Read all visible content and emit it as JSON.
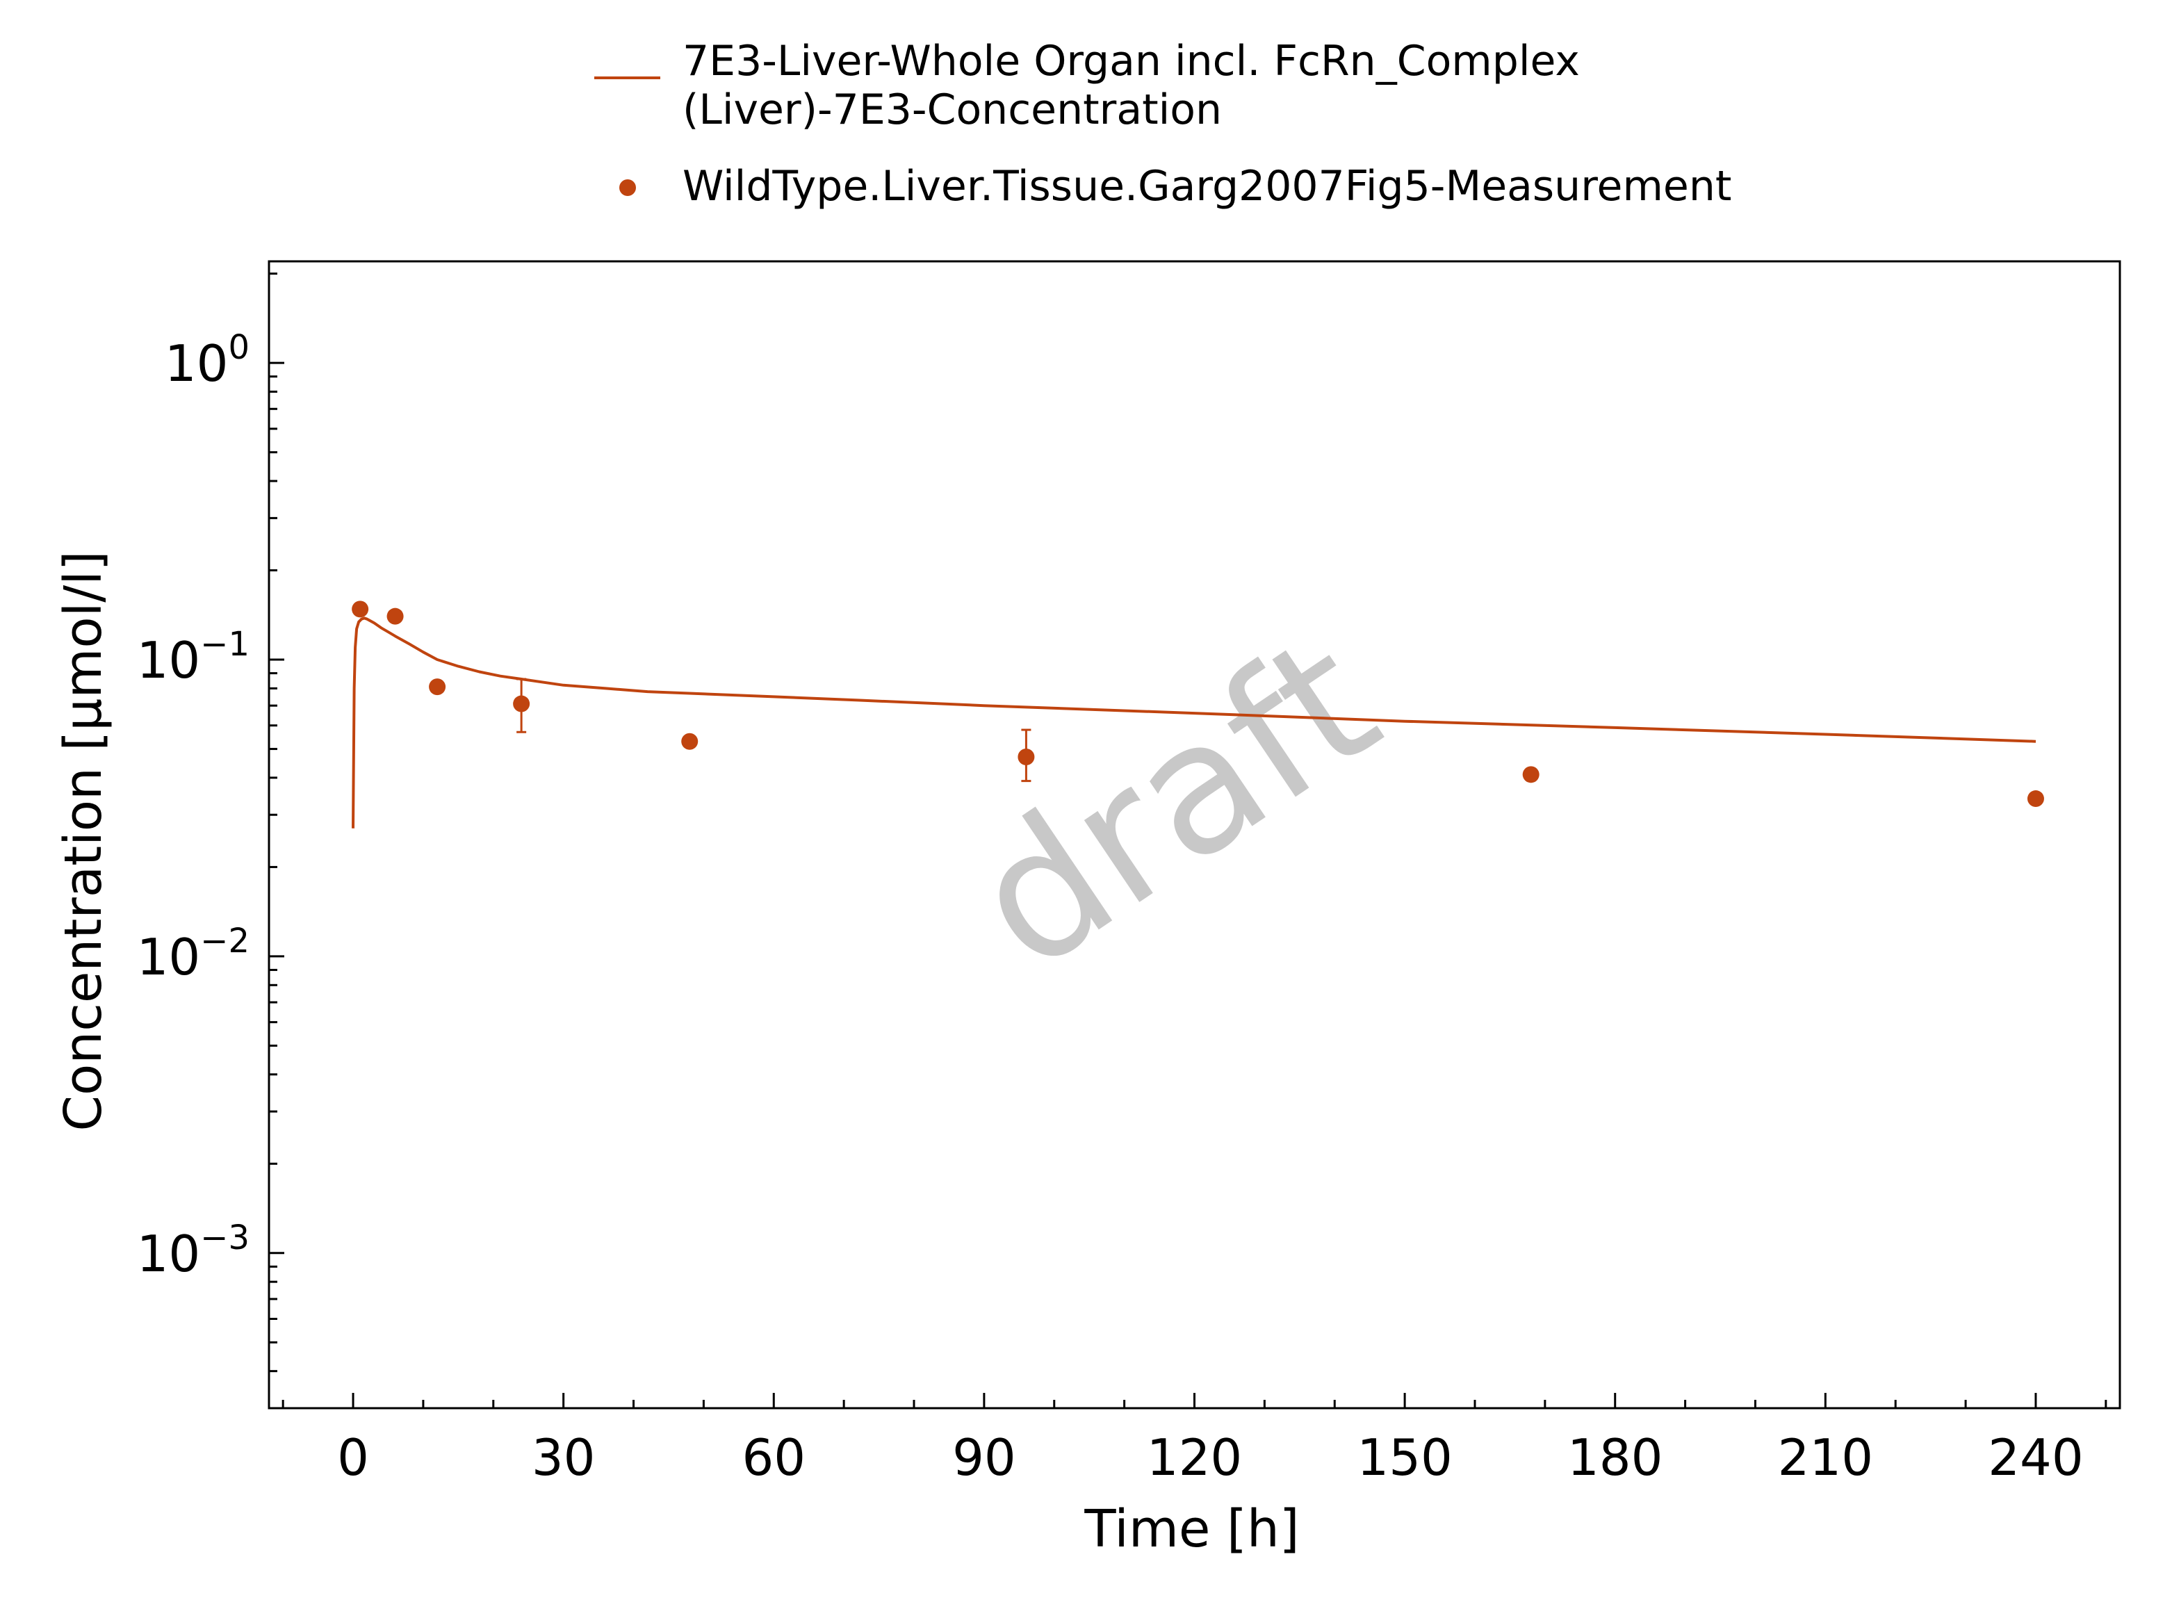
{
  "chart_data": {
    "type": "line",
    "xlabel": "Time [h]",
    "ylabel": "Concentration [µmol/l]",
    "xlim": [
      -12,
      252
    ],
    "ylim": [
      0.0003,
      2.2
    ],
    "y_scale": "log",
    "x_ticks": [
      0,
      30,
      60,
      90,
      120,
      150,
      180,
      210,
      240
    ],
    "x_tick_labels": [
      "0",
      "30",
      "60",
      "90",
      "120",
      "150",
      "180",
      "210",
      "240"
    ],
    "y_ticks": [
      {
        "value": 1,
        "base": "10",
        "exponent": "0"
      },
      {
        "value": 0.1,
        "base": "10",
        "exponent": "−1"
      },
      {
        "value": 0.01,
        "base": "10",
        "exponent": "−2"
      },
      {
        "value": 0.001,
        "base": "10",
        "exponent": "−3"
      }
    ],
    "grid": false,
    "legend_position": "top-center",
    "watermark": "draft",
    "colors": {
      "series": "#c0440f"
    },
    "series": [
      {
        "name": "7E3-Liver-Whole Organ incl. FcRn_Complex (Liver)-7E3-Concentration",
        "legend_lines": [
          "7E3-Liver-Whole Organ incl. FcRn_Complex",
          "(Liver)-7E3-Concentration"
        ],
        "kind": "line",
        "color": "#c0440f",
        "x": [
          0,
          0.15,
          0.3,
          0.5,
          0.8,
          1.2,
          1.6,
          2,
          3,
          4,
          5,
          6,
          8,
          10,
          12,
          15,
          18,
          21,
          24,
          30,
          36,
          42,
          48,
          60,
          72,
          90,
          120,
          150,
          180,
          210,
          240
        ],
        "y": [
          0.027,
          0.08,
          0.11,
          0.127,
          0.134,
          0.137,
          0.138,
          0.137,
          0.133,
          0.128,
          0.124,
          0.12,
          0.113,
          0.106,
          0.1,
          0.095,
          0.091,
          0.088,
          0.086,
          0.082,
          0.08,
          0.078,
          0.077,
          0.075,
          0.073,
          0.07,
          0.066,
          0.062,
          0.059,
          0.056,
          0.053
        ]
      },
      {
        "name": "WildType.Liver.Tissue.Garg2007Fig5-Measurement",
        "legend_lines": [
          "WildType.Liver.Tissue.Garg2007Fig5-Measurement"
        ],
        "kind": "scatter",
        "color": "#c0440f",
        "points": [
          {
            "x": 1,
            "y": 0.148
          },
          {
            "x": 6,
            "y": 0.14
          },
          {
            "x": 12,
            "y": 0.081
          },
          {
            "x": 24,
            "y": 0.071,
            "err_low": 0.057,
            "err_high": 0.086
          },
          {
            "x": 48,
            "y": 0.053
          },
          {
            "x": 96,
            "y": 0.047,
            "err_low": 0.039,
            "err_high": 0.058
          },
          {
            "x": 168,
            "y": 0.041
          },
          {
            "x": 240,
            "y": 0.034
          }
        ]
      }
    ]
  }
}
